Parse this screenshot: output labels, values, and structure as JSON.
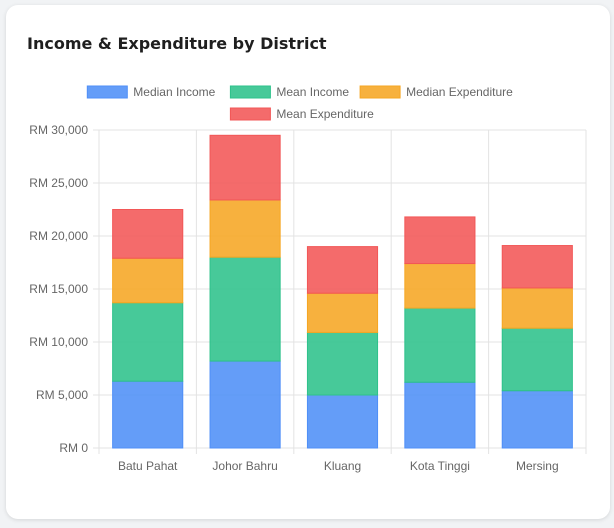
{
  "card": {
    "title": "Income & Expenditure by District"
  },
  "chart_data": {
    "type": "bar",
    "stacked": true,
    "title": "Income & Expenditure by District",
    "xlabel": "",
    "ylabel": "",
    "categories": [
      "Batu Pahat",
      "Johor Bahru",
      "Kluang",
      "Kota Tinggi",
      "Mersing"
    ],
    "series": [
      {
        "name": "Median Income",
        "values": [
          6300,
          8200,
          5000,
          6200,
          5400
        ],
        "color": "#4f8ff7"
      },
      {
        "name": "Mean Income",
        "values": [
          7400,
          9800,
          5900,
          7000,
          5900
        ],
        "color": "#2ec28b"
      },
      {
        "name": "Median Expenditure",
        "values": [
          4200,
          5400,
          3700,
          4200,
          3800
        ],
        "color": "#f6a623"
      },
      {
        "name": "Mean Expenditure",
        "values": [
          4600,
          6100,
          4400,
          4400,
          4000
        ],
        "color": "#f25757"
      }
    ],
    "ylim": [
      0,
      30000
    ],
    "yticks": [
      0,
      5000,
      10000,
      15000,
      20000,
      25000,
      30000
    ],
    "ytick_labels": [
      "RM 0",
      "RM 5,000",
      "RM 10,000",
      "RM 15,000",
      "RM 20,000",
      "RM 25,000",
      "RM 30,000"
    ],
    "grid": true,
    "legend_position": "top"
  }
}
